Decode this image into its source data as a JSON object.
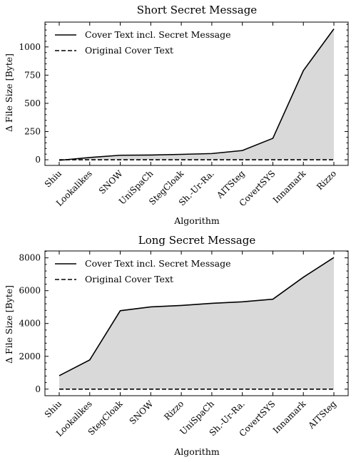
{
  "chart_data": [
    {
      "type": "line",
      "title": "Short Secret Message",
      "xlabel": "Algorithm",
      "ylabel": "Δ File Size [Byte]",
      "categories": [
        "Shiu",
        "Lookalikes",
        "SNOW",
        "UniSpaCh",
        "StegCloak",
        "Sh.-Ur-Ra.",
        "AITSteg",
        "CovertSYS",
        "Innamark",
        "Rizzo"
      ],
      "series": [
        {
          "name": "Cover Text incl. Secret Message",
          "style": "solid",
          "values": [
            -5,
            20,
            40,
            42,
            48,
            55,
            82,
            190,
            790,
            1160
          ]
        },
        {
          "name": "Original Cover Text",
          "style": "dashed",
          "values": [
            0,
            0,
            0,
            0,
            0,
            0,
            0,
            0,
            0,
            0
          ]
        }
      ],
      "ylim": [
        -50,
        1220
      ],
      "yticks": [
        0,
        250,
        500,
        750,
        1000
      ],
      "fill_between": true,
      "fill_color": "#d9d9d9",
      "legend_position": "top-left",
      "grid": false
    },
    {
      "type": "line",
      "title": "Long Secret Message",
      "xlabel": "Algorithm",
      "ylabel": "Δ File Size [Byte]",
      "categories": [
        "Shiu",
        "Lookalikes",
        "StegCloak",
        "SNOW",
        "Rizzo",
        "UniSpaCh",
        "Sh.-Ur-Ra.",
        "CovertSYS",
        "Innamark",
        "AITSteg"
      ],
      "series": [
        {
          "name": "Cover Text incl. Secret Message",
          "style": "solid",
          "values": [
            820,
            1780,
            4780,
            5010,
            5100,
            5230,
            5320,
            5480,
            6820,
            8020
          ]
        },
        {
          "name": "Original Cover Text",
          "style": "dashed",
          "values": [
            0,
            0,
            0,
            0,
            0,
            0,
            0,
            0,
            0,
            0
          ]
        }
      ],
      "ylim": [
        -400,
        8420
      ],
      "yticks": [
        0,
        2000,
        4000,
        6000,
        8000
      ],
      "fill_between": true,
      "fill_color": "#d9d9d9",
      "legend_position": "top-left",
      "grid": false
    }
  ]
}
